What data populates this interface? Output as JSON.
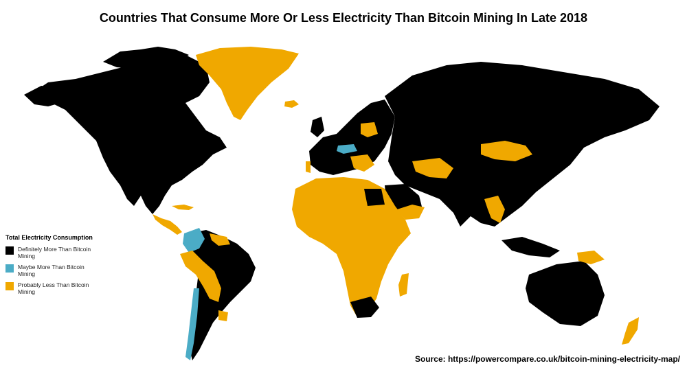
{
  "title": "Countries That Consume More Or Less Electricity Than Bitcoin Mining In Late 2018",
  "legend": {
    "title": "Total Electricity Consumption",
    "items": [
      {
        "label": "Definitely More Than Bitcoin Mining",
        "color": "#000000"
      },
      {
        "label": "Maybe More Than Bitcoin Mining",
        "color": "#4bacc6"
      },
      {
        "label": "Probably Less Than Bitcoin Mining",
        "color": "#f0a800"
      }
    ]
  },
  "source": "Source: https://powercompare.co.uk/bitcoin-mining-electricity-map/",
  "colors": {
    "more": "#000000",
    "maybe": "#4bacc6",
    "less": "#f0a800",
    "background": "#ffffff"
  }
}
